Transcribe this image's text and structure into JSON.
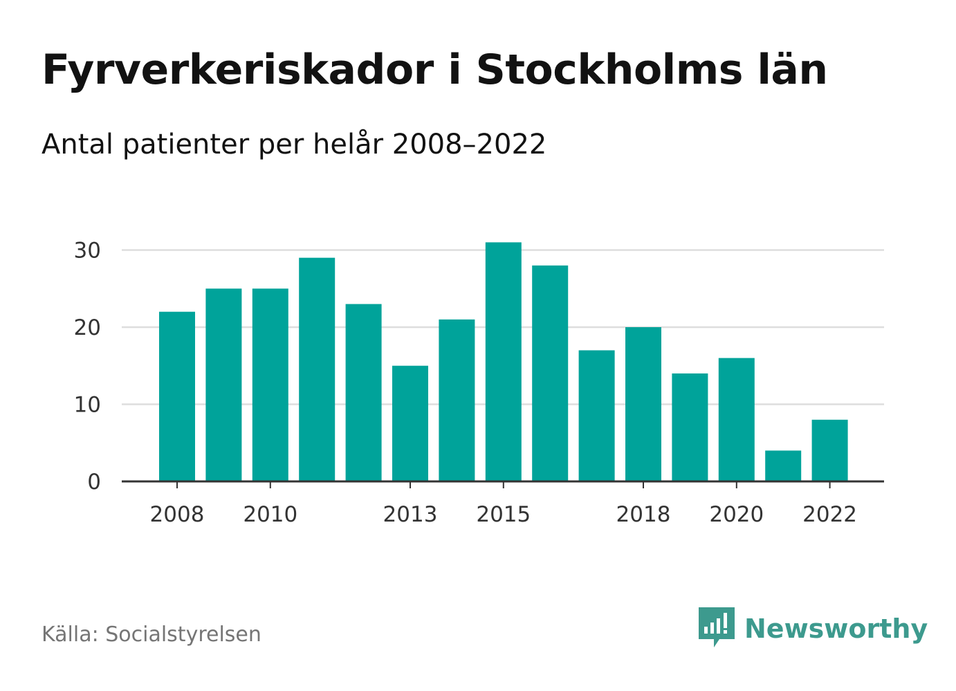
{
  "chart_data": {
    "type": "bar",
    "title": "Fyrverkeriskador i Stockholms län",
    "subtitle": "Antal patienter per helår 2008–2022",
    "categories": [
      2008,
      2009,
      2010,
      2011,
      2012,
      2013,
      2014,
      2015,
      2016,
      2017,
      2018,
      2019,
      2020,
      2021,
      2022
    ],
    "values": [
      22,
      25,
      25,
      29,
      23,
      15,
      21,
      31,
      28,
      17,
      20,
      14,
      16,
      4,
      8
    ],
    "x_tick_labels": [
      "2008",
      "2010",
      "2013",
      "2015",
      "2018",
      "2020",
      "2022"
    ],
    "y_ticks": [
      0,
      10,
      20,
      30
    ],
    "ylim": [
      0,
      32
    ],
    "xlabel": "",
    "ylabel": "",
    "grid": true,
    "legend": "none",
    "bar_color": "#00a39a"
  },
  "footer": {
    "source": "Källa: Socialstyrelsen",
    "brand": "Newsworthy",
    "brand_icon": "bar-chart-speech-bubble-icon",
    "brand_color": "#3d9a8e"
  }
}
